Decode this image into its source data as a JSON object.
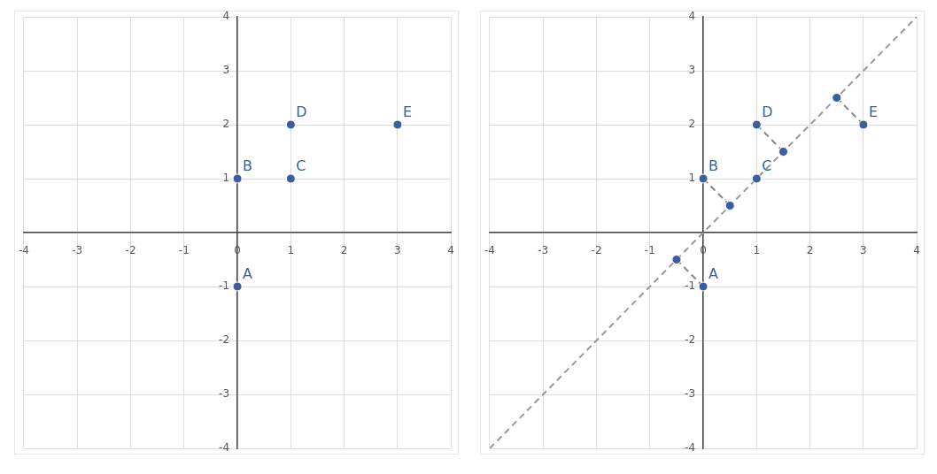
{
  "chart_data": [
    {
      "type": "scatter",
      "xlim": [
        -4,
        4
      ],
      "ylim": [
        -4,
        4
      ],
      "xticks": [
        -4,
        -3,
        -2,
        -1,
        0,
        1,
        2,
        3,
        4
      ],
      "yticks": [
        -4,
        -3,
        -2,
        -1,
        {
          "value": 0,
          "label": null
        },
        1,
        2,
        3,
        4
      ],
      "grid": true,
      "legend": false,
      "marker": "circle",
      "series": [
        {
          "color": "#3a5f9a",
          "x": [
            0,
            0,
            1,
            1,
            3
          ],
          "values": [
            -1,
            1,
            1,
            2,
            2
          ]
        }
      ],
      "annotations": [
        {
          "text": "A",
          "x": 0,
          "y": -1
        },
        {
          "text": "B",
          "x": 0,
          "y": 1
        },
        {
          "text": "C",
          "x": 1,
          "y": 1
        },
        {
          "text": "D",
          "x": 1,
          "y": 2
        },
        {
          "text": "E",
          "x": 3,
          "y": 2
        }
      ]
    },
    {
      "type": "scatter",
      "xlim": [
        -4,
        4
      ],
      "ylim": [
        -4,
        4
      ],
      "xticks": [
        -4,
        -3,
        -2,
        -1,
        0,
        1,
        2,
        3,
        4
      ],
      "yticks": [
        -4,
        -3,
        -2,
        -1,
        {
          "value": 0,
          "label": null
        },
        1,
        2,
        3,
        4
      ],
      "grid": true,
      "legend": false,
      "marker": "circle",
      "series": [
        {
          "type": "line",
          "color": "#999999",
          "line_style": "dashed",
          "marker": "none",
          "x": [
            -4,
            4
          ],
          "values": [
            -4,
            4
          ]
        },
        {
          "type": "line",
          "color": "#888888",
          "line_style": "dashed",
          "marker": "none",
          "x": [
            0,
            -0.5
          ],
          "values": [
            -1,
            -0.5
          ]
        },
        {
          "type": "line",
          "color": "#888888",
          "line_style": "dashed",
          "marker": "none",
          "x": [
            0,
            0.5
          ],
          "values": [
            1,
            0.5
          ]
        },
        {
          "type": "line",
          "color": "#888888",
          "line_style": "dashed",
          "marker": "none",
          "x": [
            1,
            1.5
          ],
          "values": [
            2,
            1.5
          ]
        },
        {
          "type": "line",
          "color": "#888888",
          "line_style": "dashed",
          "marker": "none",
          "x": [
            3,
            2.5
          ],
          "values": [
            2,
            2.5
          ]
        },
        {
          "color": "#3a5f9a",
          "x": [
            0,
            0,
            1,
            1,
            3
          ],
          "values": [
            -1,
            1,
            1,
            2,
            2
          ]
        },
        {
          "color": "#3a5f9a",
          "x": [
            -0.5,
            0.5,
            1.5,
            2.5
          ],
          "values": [
            -0.5,
            0.5,
            1.5,
            2.5
          ]
        }
      ],
      "annotations": [
        {
          "text": "A",
          "x": 0,
          "y": -1
        },
        {
          "text": "B",
          "x": 0,
          "y": 1
        },
        {
          "text": "C",
          "x": 1,
          "y": 1
        },
        {
          "text": "D",
          "x": 1,
          "y": 2
        },
        {
          "text": "E",
          "x": 3,
          "y": 2
        }
      ]
    }
  ]
}
